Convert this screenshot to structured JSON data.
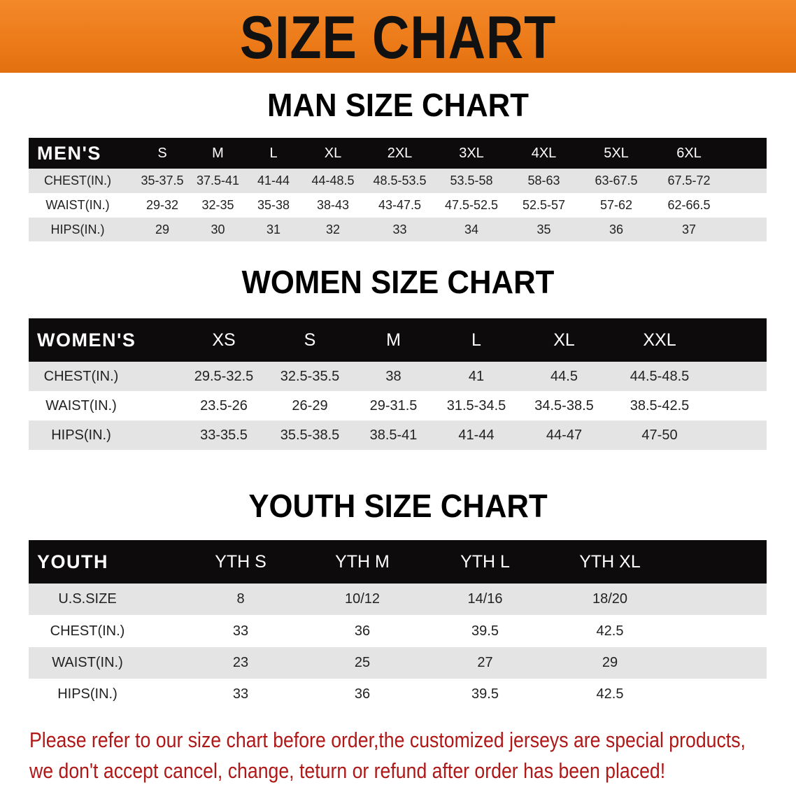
{
  "banner": {
    "title": "SIZE CHART",
    "color": "#ec7a18"
  },
  "men": {
    "title": "MAN SIZE CHART",
    "header": [
      "MEN'S",
      "S",
      "M",
      "L",
      "XL",
      "2XL",
      "3XL",
      "4XL",
      "5XL",
      "6XL"
    ],
    "rows": [
      [
        "CHEST(IN.)",
        "35-37.5",
        "37.5-41",
        "41-44",
        "44-48.5",
        "48.5-53.5",
        "53.5-58",
        "58-63",
        "63-67.5",
        "67.5-72"
      ],
      [
        "WAIST(IN.)",
        "29-32",
        "32-35",
        "35-38",
        "38-43",
        "43-47.5",
        "47.5-52.5",
        "52.5-57",
        "57-62",
        "62-66.5"
      ],
      [
        "HIPS(IN.)",
        "29",
        "30",
        "31",
        "32",
        "33",
        "34",
        "35",
        "36",
        "37"
      ]
    ]
  },
  "women": {
    "title": "WOMEN SIZE CHART",
    "header": [
      "WOMEN'S",
      "XS",
      "S",
      "M",
      "L",
      "XL",
      "XXL"
    ],
    "rows": [
      [
        "CHEST(IN.)",
        "29.5-32.5",
        "32.5-35.5",
        "38",
        "41",
        "44.5",
        "44.5-48.5"
      ],
      [
        "WAIST(IN.)",
        "23.5-26",
        "26-29",
        "29-31.5",
        "31.5-34.5",
        "34.5-38.5",
        "38.5-42.5"
      ],
      [
        "HIPS(IN.)",
        "33-35.5",
        "35.5-38.5",
        "38.5-41",
        "41-44",
        "44-47",
        "47-50"
      ]
    ]
  },
  "youth": {
    "title": "YOUTH SIZE CHART",
    "header": [
      "YOUTH",
      "YTH S",
      "YTH M",
      "YTH L",
      "YTH XL"
    ],
    "rows": [
      [
        "U.S.SIZE",
        "8",
        "10/12",
        "14/16",
        "18/20"
      ],
      [
        "CHEST(IN.)",
        "33",
        "36",
        "39.5",
        "42.5"
      ],
      [
        "WAIST(IN.)",
        "23",
        "25",
        "27",
        "29"
      ],
      [
        "HIPS(IN.)",
        "33",
        "36",
        "39.5",
        "42.5"
      ]
    ]
  },
  "notice": {
    "line1": "Please refer to our size chart before order,the customized jerseys are special products,",
    "line2": "we don't accept cancel, change, teturn or refund after order has been placed!",
    "color": "#b01818"
  }
}
